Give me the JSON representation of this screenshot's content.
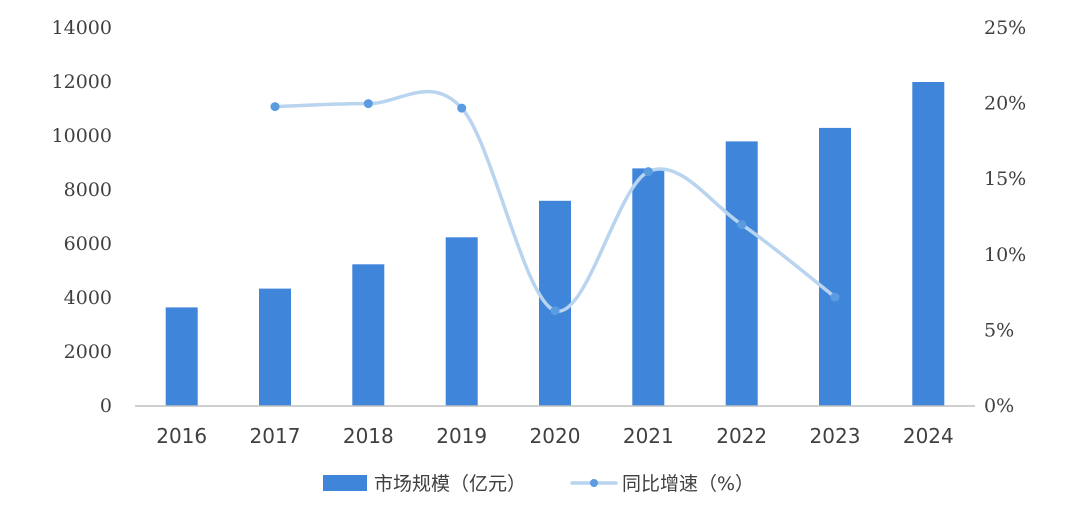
{
  "chart_data": {
    "type": "bar",
    "categories": [
      "2016",
      "2017",
      "2018",
      "2019",
      "2020",
      "2021",
      "2022",
      "2023",
      "2024"
    ],
    "series": [
      {
        "name": "市场规模（亿元）",
        "type": "bar",
        "axis": "left",
        "values": [
          3650,
          4350,
          5250,
          6250,
          7600,
          8800,
          9800,
          10300,
          12000
        ]
      },
      {
        "name": "同比增速（%）",
        "type": "line",
        "axis": "right",
        "values": [
          null,
          19.8,
          20.0,
          19.7,
          6.3,
          15.5,
          12.0,
          7.2,
          null
        ]
      }
    ],
    "y_left": {
      "lim": [
        0,
        14000
      ],
      "ticks": [
        0,
        2000,
        4000,
        6000,
        8000,
        10000,
        12000,
        14000
      ],
      "tick_labels": [
        "0",
        "2000",
        "4000",
        "6000",
        "8000",
        "10000",
        "12000",
        "14000"
      ]
    },
    "y_right": {
      "lim": [
        0,
        25
      ],
      "ticks": [
        0,
        5,
        10,
        15,
        20,
        25
      ],
      "tick_labels": [
        "0%",
        "5%",
        "10%",
        "15%",
        "20%",
        "25%"
      ]
    },
    "legend": {
      "placement": "bottom-center",
      "items": [
        "市场规模（亿元）",
        "同比增速（%）"
      ]
    },
    "grid": false,
    "colors": {
      "bar": "#3f86db",
      "line": "#b9d4ef",
      "marker": "#5b9be0",
      "axis": "#bfbfbf"
    }
  }
}
